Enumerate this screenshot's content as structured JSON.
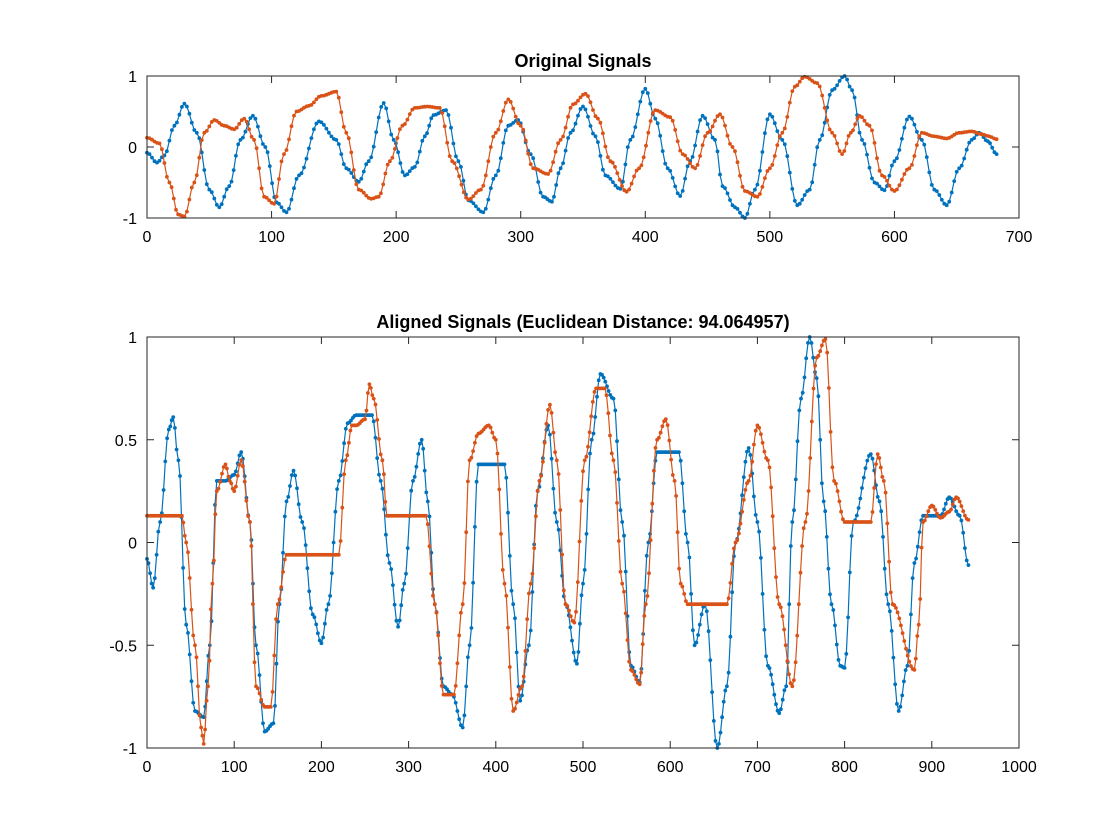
{
  "chart_data": [
    {
      "type": "line",
      "title": "Original Signals",
      "xlabel": "",
      "ylabel": "",
      "xlim": [
        0,
        700
      ],
      "ylim": [
        -1,
        1
      ],
      "xticks": [
        0,
        100,
        200,
        300,
        400,
        500,
        600,
        700
      ],
      "yticks": [
        -1,
        0,
        1
      ],
      "xtick_labels": [
        "0",
        "100",
        "200",
        "300",
        "400",
        "500",
        "600",
        "700"
      ],
      "ytick_labels": [
        "-1",
        "0",
        "1"
      ],
      "grid": false,
      "series": [
        {
          "color": "#0072BD",
          "marker": "dot",
          "x": [
            0,
            8,
            14,
            22,
            30,
            40,
            50,
            58,
            66,
            75,
            85,
            95,
            104,
            112,
            122,
            138,
            152,
            160,
            170,
            178,
            190,
            198,
            207,
            215,
            223,
            230,
            240,
            250,
            258,
            270,
            280,
            290,
            298,
            308,
            318,
            325,
            332,
            340,
            350,
            360,
            368,
            380,
            388,
            400,
            408,
            418,
            428,
            436,
            446,
            456,
            462,
            472,
            480,
            488,
            500,
            510,
            522,
            532,
            540,
            550,
            560,
            566,
            574,
            584,
            592,
            600,
            612,
            622,
            632,
            642,
            652,
            662,
            668,
            675,
            682
          ],
          "y": [
            -0.08,
            -0.22,
            -0.12,
            0.3,
            0.61,
            0.2,
            -0.6,
            -0.85,
            -0.55,
            0.1,
            0.44,
            0.0,
            -0.78,
            -0.92,
            -0.4,
            0.36,
            0.1,
            -0.3,
            -0.49,
            -0.2,
            0.62,
            0.1,
            -0.4,
            -0.28,
            0.15,
            0.45,
            0.52,
            -0.2,
            -0.75,
            -0.92,
            -0.4,
            0.3,
            0.38,
            -0.1,
            -0.7,
            -0.77,
            -0.3,
            0.2,
            0.57,
            0.15,
            -0.4,
            -0.59,
            0.1,
            0.82,
            0.4,
            -0.3,
            -0.69,
            -0.2,
            0.44,
            0.1,
            -0.55,
            -0.85,
            -1.0,
            -0.6,
            0.46,
            0.1,
            -0.82,
            -0.6,
            0.1,
            0.8,
            1.0,
            0.8,
            0.1,
            -0.5,
            -0.61,
            -0.2,
            0.43,
            0.1,
            -0.6,
            -0.82,
            -0.3,
            0.1,
            0.2,
            0.08,
            -0.1
          ]
        },
        {
          "color": "#D95319",
          "marker": "dot",
          "x": [
            0,
            10,
            18,
            25,
            30,
            38,
            46,
            54,
            62,
            70,
            78,
            86,
            94,
            102,
            110,
            120,
            130,
            140,
            152,
            160,
            170,
            180,
            186,
            195,
            205,
            215,
            225,
            235,
            245,
            258,
            268,
            280,
            290,
            300,
            310,
            322,
            332,
            342,
            352,
            362,
            372,
            385,
            395,
            408,
            420,
            430,
            440,
            450,
            460,
            470,
            480,
            490,
            500,
            510,
            520,
            528,
            538,
            550,
            558,
            565,
            572,
            580,
            590,
            600,
            612,
            622,
            632,
            642,
            652,
            662,
            670,
            676,
            682
          ],
          "y": [
            0.13,
            0.05,
            -0.5,
            -0.95,
            -0.98,
            -0.5,
            0.2,
            0.38,
            0.3,
            0.25,
            0.4,
            0.1,
            -0.7,
            -0.8,
            -0.1,
            0.5,
            0.58,
            0.72,
            0.78,
            0.2,
            -0.6,
            -0.73,
            -0.7,
            -0.2,
            0.3,
            0.55,
            0.57,
            0.55,
            -0.2,
            -0.74,
            -0.6,
            0.2,
            0.67,
            0.3,
            -0.3,
            -0.38,
            0.1,
            0.6,
            0.75,
            0.4,
            -0.2,
            -0.63,
            -0.3,
            0.52,
            0.42,
            -0.1,
            -0.3,
            0.2,
            0.46,
            0.0,
            -0.62,
            -0.7,
            -0.3,
            0.2,
            0.85,
            0.99,
            0.9,
            0.2,
            -0.1,
            0.2,
            0.44,
            0.3,
            -0.4,
            -0.62,
            -0.3,
            0.2,
            0.15,
            0.12,
            0.2,
            0.22,
            0.18,
            0.15,
            0.11
          ]
        }
      ]
    },
    {
      "type": "line",
      "title": "Aligned Signals (Euclidean Distance: 94.064957)",
      "xlabel": "",
      "ylabel": "",
      "xlim": [
        0,
        1000
      ],
      "ylim": [
        -1,
        1
      ],
      "xticks": [
        0,
        100,
        200,
        300,
        400,
        500,
        600,
        700,
        800,
        900,
        1000
      ],
      "yticks": [
        -1,
        -0.5,
        0,
        0.5,
        1
      ],
      "xtick_labels": [
        "0",
        "100",
        "200",
        "300",
        "400",
        "500",
        "600",
        "700",
        "800",
        "900",
        "1000"
      ],
      "ytick_labels": [
        "-1",
        "-0.5",
        "0",
        "0.5",
        "1"
      ],
      "grid": false,
      "series": [
        {
          "color": "#0072BD",
          "marker": "dot",
          "x": [
            0,
            7,
            15,
            25,
            30,
            36,
            45,
            55,
            65,
            72,
            80,
            90,
            100,
            108,
            118,
            125,
            135,
            145,
            152,
            160,
            168,
            178,
            190,
            200,
            208,
            220,
            230,
            240,
            248,
            258,
            268,
            278,
            288,
            295,
            305,
            315,
            322,
            330,
            340,
            350,
            362,
            370,
            380,
            400,
            410,
            420,
            428,
            438,
            448,
            460,
            470,
            480,
            493,
            500,
            510,
            520,
            535,
            545,
            555,
            565,
            575,
            585,
            600,
            610,
            620,
            628,
            640,
            654,
            665,
            675,
            690,
            700,
            712,
            725,
            733,
            740,
            750,
            760,
            768,
            776,
            785,
            795,
            800,
            810,
            830,
            840,
            850,
            862,
            872,
            880,
            890,
            900,
            910,
            920,
            932,
            942
          ],
          "y": [
            -0.08,
            -0.22,
            0.1,
            0.55,
            0.61,
            0.4,
            -0.4,
            -0.82,
            -0.85,
            -0.5,
            0.3,
            0.3,
            0.33,
            0.44,
            0.1,
            -0.5,
            -0.92,
            -0.88,
            -0.3,
            0.2,
            0.35,
            0.1,
            -0.35,
            -0.49,
            -0.3,
            0.3,
            0.58,
            0.62,
            0.62,
            0.62,
            0.3,
            -0.1,
            -0.41,
            -0.2,
            0.3,
            0.5,
            0.2,
            -0.3,
            -0.7,
            -0.74,
            -0.9,
            -0.5,
            0.38,
            0.38,
            0.38,
            -0.3,
            -0.77,
            -0.5,
            0.25,
            0.57,
            0.1,
            -0.3,
            -0.59,
            -0.2,
            0.5,
            0.82,
            0.7,
            0.1,
            -0.6,
            -0.68,
            0.0,
            0.44,
            0.44,
            0.44,
            0.0,
            -0.5,
            -0.3,
            -1.0,
            -0.7,
            0.0,
            0.46,
            0.1,
            -0.6,
            -0.83,
            -0.7,
            0.1,
            0.7,
            1.0,
            0.8,
            0.2,
            -0.3,
            -0.6,
            -0.61,
            0.1,
            0.43,
            0.2,
            -0.3,
            -0.82,
            -0.6,
            -0.1,
            0.13,
            0.13,
            0.13,
            0.22,
            0.13,
            -0.11
          ]
        },
        {
          "color": "#D95319",
          "marker": "dot",
          "x": [
            0,
            40,
            45,
            55,
            62,
            65,
            70,
            75,
            80,
            90,
            95,
            100,
            108,
            118,
            125,
            135,
            142,
            150,
            160,
            185,
            220,
            228,
            235,
            240,
            250,
            255,
            260,
            270,
            275,
            278,
            320,
            330,
            340,
            352,
            362,
            370,
            380,
            392,
            400,
            410,
            420,
            430,
            440,
            450,
            462,
            470,
            480,
            490,
            502,
            515,
            525,
            535,
            545,
            555,
            565,
            572,
            585,
            595,
            605,
            612,
            620,
            640,
            665,
            675,
            690,
            700,
            712,
            725,
            740,
            755,
            768,
            778,
            788,
            800,
            815,
            830,
            838,
            845,
            855,
            880,
            885,
            890,
            900,
            910,
            920,
            928,
            942
          ],
          "y": [
            0.13,
            0.13,
            0.0,
            -0.5,
            -0.9,
            -0.98,
            -0.7,
            -0.2,
            0.25,
            0.38,
            0.3,
            0.25,
            0.4,
            0.1,
            -0.7,
            -0.8,
            -0.8,
            -0.3,
            -0.06,
            -0.06,
            -0.06,
            0.4,
            0.57,
            0.57,
            0.6,
            0.77,
            0.7,
            0.4,
            0.13,
            0.13,
            0.13,
            -0.3,
            -0.74,
            -0.74,
            -0.3,
            0.4,
            0.53,
            0.57,
            0.5,
            -0.2,
            -0.82,
            -0.7,
            -0.2,
            0.3,
            0.67,
            0.4,
            -0.3,
            -0.39,
            0.4,
            0.75,
            0.75,
            0.4,
            -0.2,
            -0.62,
            -0.69,
            -0.3,
            0.5,
            0.6,
            0.3,
            -0.2,
            -0.3,
            -0.3,
            -0.3,
            0.0,
            0.3,
            0.57,
            0.4,
            -0.3,
            -0.7,
            0.1,
            0.9,
            0.99,
            0.3,
            0.1,
            0.1,
            0.1,
            0.43,
            0.3,
            -0.3,
            -0.62,
            -0.4,
            0.1,
            0.18,
            0.12,
            0.15,
            0.22,
            0.11
          ]
        }
      ]
    }
  ]
}
